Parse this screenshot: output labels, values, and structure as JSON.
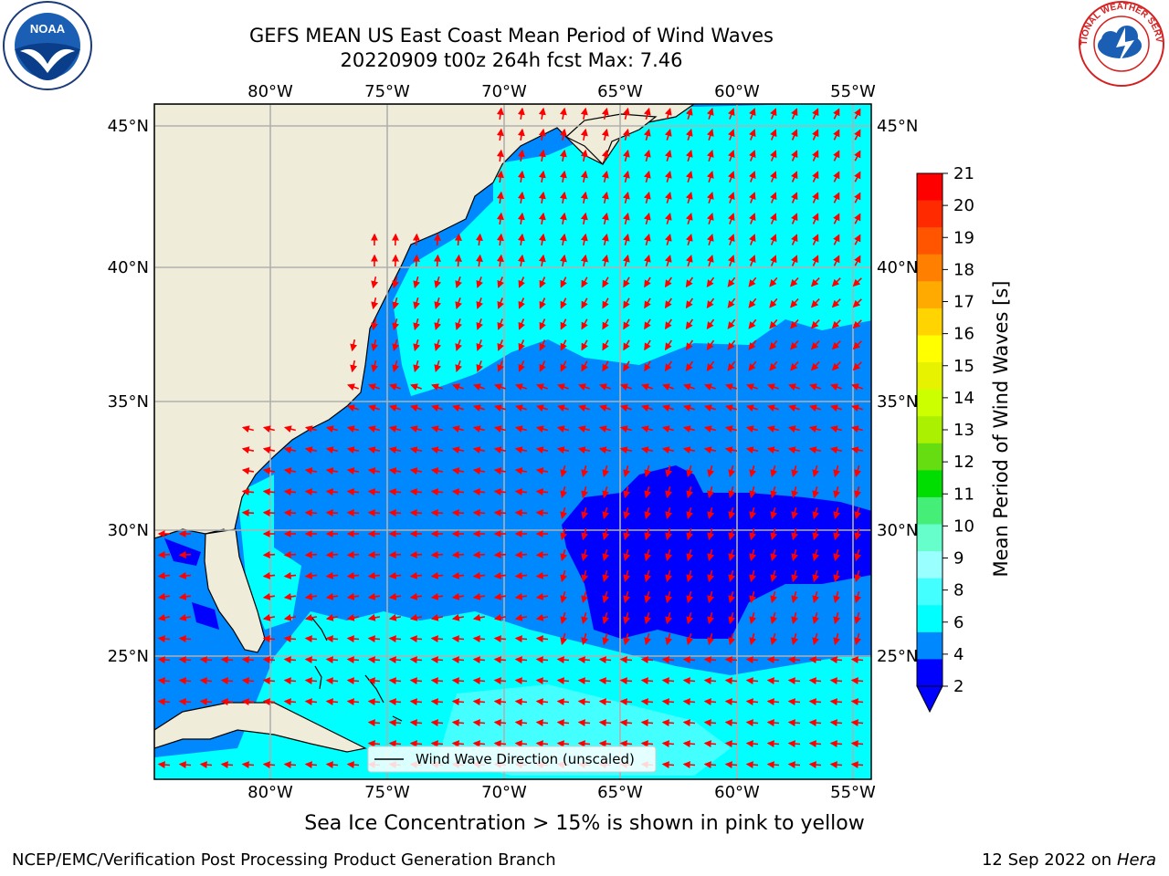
{
  "header": {
    "title": "GEFS MEAN US East Coast Mean Period of Wind Waves",
    "subtitle": "20220909 t00z 264h fcst   Max: 7.46"
  },
  "map": {
    "lon_labels_top": [
      "80°W",
      "75°W",
      "70°W",
      "65°W",
      "60°W",
      "55°W"
    ],
    "lon_labels_bottom": [
      "80°W",
      "75°W",
      "70°W",
      "65°W",
      "60°W",
      "55°W"
    ],
    "lat_labels_left": [
      "45°N",
      "40°N",
      "35°N",
      "30°N",
      "25°N"
    ],
    "lat_labels_right": [
      "45°N",
      "40°N",
      "35°N",
      "30°N",
      "25°N"
    ],
    "legend_label": "Wind Wave Direction (unscaled)",
    "arrow_color": "#ff0000",
    "land_color": "#efedda"
  },
  "colorbar": {
    "label": "Mean Period of Wind Waves [s]",
    "ticks": [
      "21",
      "20",
      "19",
      "18",
      "17",
      "16",
      "15",
      "14",
      "13",
      "12",
      "11",
      "10",
      "9",
      "8",
      "6",
      "4",
      "2"
    ],
    "colors": [
      "#ff0000",
      "#ff2a00",
      "#ff5500",
      "#ff8000",
      "#ffaa00",
      "#ffd400",
      "#ffff00",
      "#e6f200",
      "#ccff00",
      "#aaf000",
      "#66dd11",
      "#00dd00",
      "#44ee77",
      "#66ffcc",
      "#99ffff",
      "#44ffff",
      "#00ffff",
      "#0088ff",
      "#0000ff"
    ]
  },
  "captions": {
    "sea_ice": "Sea Ice Concentration > 15% is shown in pink to yellow",
    "producer": "NCEP/EMC/Verification Post Processing Product Generation Branch",
    "date": "12 Sep 2022 on",
    "host": "Hera"
  },
  "logos": {
    "noaa": "NOAA",
    "nws": "NATIONAL WEATHER SERVICE"
  }
}
